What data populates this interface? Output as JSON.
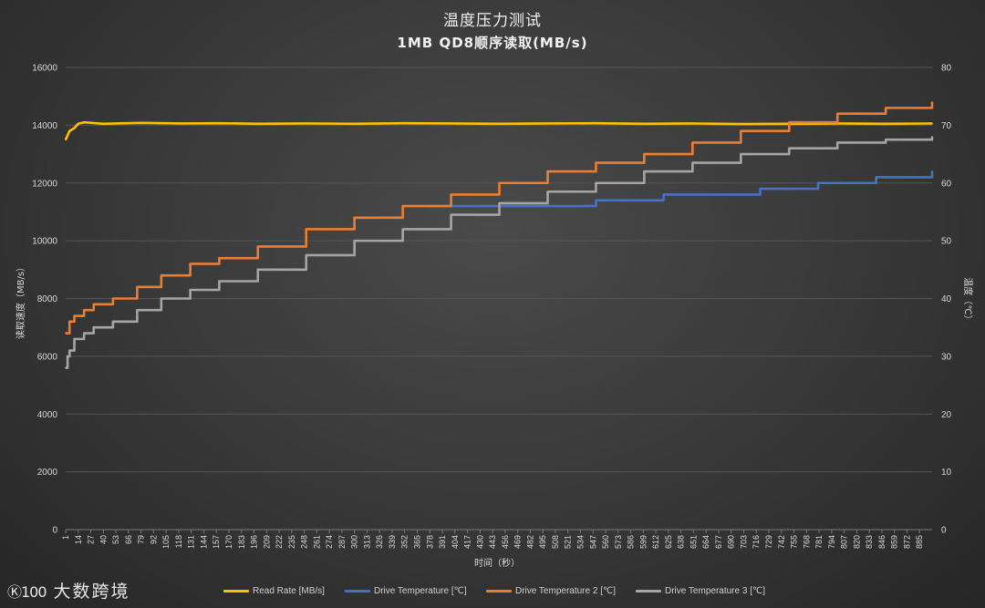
{
  "chart_data": {
    "type": "line",
    "title": "温度压力测试",
    "subtitle": "1MB QD8顺序读取(MB/s)",
    "xlabel": "时间（秒）",
    "ylabel_left": "读取速度（MB/s）",
    "ylabel_right": "温度（℃）",
    "ylim_left": [
      0,
      16000
    ],
    "ylim_right": [
      0,
      80
    ],
    "yticks_left": [
      0,
      2000,
      4000,
      6000,
      8000,
      10000,
      12000,
      14000,
      16000
    ],
    "yticks_right": [
      0,
      10,
      20,
      30,
      40,
      50,
      60,
      70,
      80
    ],
    "xlim": [
      1,
      898
    ],
    "xticks": [
      1,
      14,
      27,
      40,
      53,
      66,
      79,
      92,
      105,
      118,
      131,
      144,
      157,
      170,
      183,
      196,
      209,
      222,
      235,
      248,
      261,
      274,
      287,
      300,
      313,
      326,
      339,
      352,
      365,
      378,
      391,
      404,
      417,
      430,
      443,
      456,
      469,
      482,
      495,
      508,
      521,
      534,
      547,
      560,
      573,
      586,
      599,
      612,
      625,
      638,
      651,
      664,
      677,
      690,
      703,
      716,
      729,
      742,
      755,
      768,
      781,
      794,
      807,
      820,
      833,
      846,
      859,
      872,
      885
    ],
    "grid": true,
    "legend_position": "bottom",
    "series": [
      {
        "name": "Read Rate [MB/s]",
        "axis": "left",
        "color": "#ffc000",
        "x": [
          1,
          5,
          10,
          14,
          20,
          40,
          80,
          120,
          160,
          200,
          250,
          300,
          350,
          400,
          450,
          500,
          550,
          600,
          650,
          700,
          750,
          800,
          850,
          898
        ],
        "y": [
          13500,
          13800,
          13900,
          14050,
          14100,
          14050,
          14080,
          14060,
          14070,
          14050,
          14060,
          14050,
          14070,
          14060,
          14050,
          14060,
          14070,
          14050,
          14060,
          14040,
          14050,
          14060,
          14050,
          14060
        ]
      },
      {
        "name": "Drive Temperature [℃]",
        "axis": "right",
        "color": "#4472c4",
        "x": [
          378,
          480,
          550,
          620,
          720,
          780,
          840,
          898
        ],
        "y": [
          56,
          56,
          57,
          58,
          59,
          60,
          61,
          62
        ]
      },
      {
        "name": "Drive Temperature 2 [℃]",
        "axis": "right",
        "color": "#ed7d31",
        "x": [
          1,
          5,
          10,
          20,
          30,
          50,
          75,
          100,
          130,
          160,
          200,
          250,
          300,
          350,
          400,
          450,
          500,
          550,
          600,
          650,
          700,
          750,
          800,
          850,
          898
        ],
        "y": [
          34,
          36,
          37,
          38,
          39,
          40,
          42,
          44,
          46,
          47,
          49,
          52,
          54,
          56,
          58,
          60,
          62,
          63.5,
          65,
          67,
          69,
          70.5,
          72,
          73,
          74
        ]
      },
      {
        "name": "Drive Temperature 3 [℃]",
        "axis": "right",
        "color": "#a5a5a5",
        "x": [
          1,
          3,
          5,
          10,
          20,
          30,
          50,
          75,
          100,
          130,
          160,
          200,
          250,
          300,
          350,
          400,
          450,
          500,
          550,
          600,
          650,
          700,
          750,
          800,
          850,
          898
        ],
        "y": [
          28,
          30,
          31,
          33,
          34,
          35,
          36,
          38,
          40,
          41.5,
          43,
          45,
          47.5,
          50,
          52,
          54.5,
          56.5,
          58.5,
          60,
          62,
          63.5,
          65,
          66,
          67,
          67.5,
          68
        ]
      }
    ]
  },
  "watermark": {
    "mark": "Ⓚ100",
    "text": "大数跨境"
  }
}
